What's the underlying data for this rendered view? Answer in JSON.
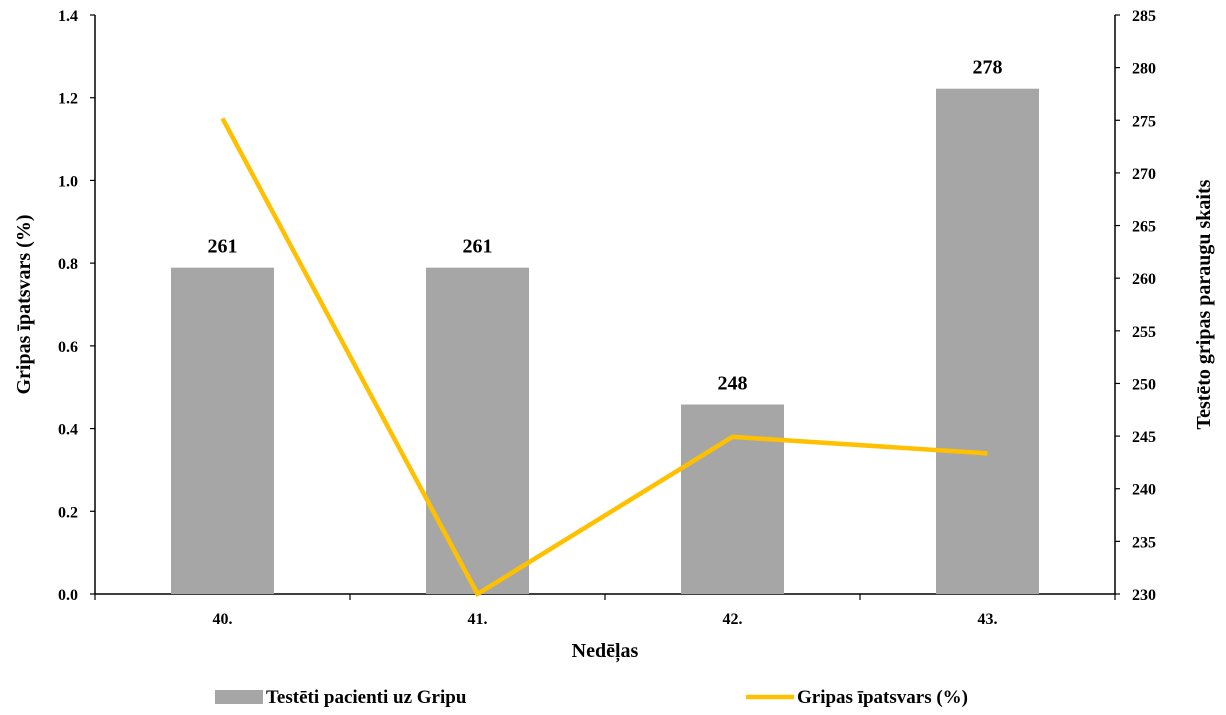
{
  "chart_data": {
    "type": "bar",
    "xlabel": "Nedēļas",
    "ylabel_left": "Gripas īpatsvars (%)",
    "ylabel_right": "Testēto gripas paraugu skaits",
    "categories": [
      "40.",
      "41.",
      "42.",
      "43."
    ],
    "y_left_range": [
      0,
      1.4
    ],
    "y_left_ticks": [
      "0.0",
      "0.2",
      "0.4",
      "0.6",
      "0.8",
      "1.0",
      "1.2",
      "1.4"
    ],
    "y_right_range": [
      230,
      285
    ],
    "y_right_ticks": [
      "230",
      "235",
      "240",
      "245",
      "250",
      "255",
      "260",
      "265",
      "270",
      "275",
      "280",
      "285"
    ],
    "grid": false,
    "legend_position": "bottom",
    "series": [
      {
        "name": "Testēti pacienti uz Gripu",
        "type": "bar",
        "axis": "right",
        "values": [
          261,
          261,
          248,
          278
        ],
        "data_labels": [
          "261",
          "261",
          "248",
          "278"
        ],
        "color": "#a6a6a6"
      },
      {
        "name": "Gripas īpatsvars (%)",
        "type": "line",
        "axis": "left",
        "values": [
          1.15,
          0.0,
          0.38,
          0.34
        ],
        "color": "#ffc000"
      }
    ]
  }
}
